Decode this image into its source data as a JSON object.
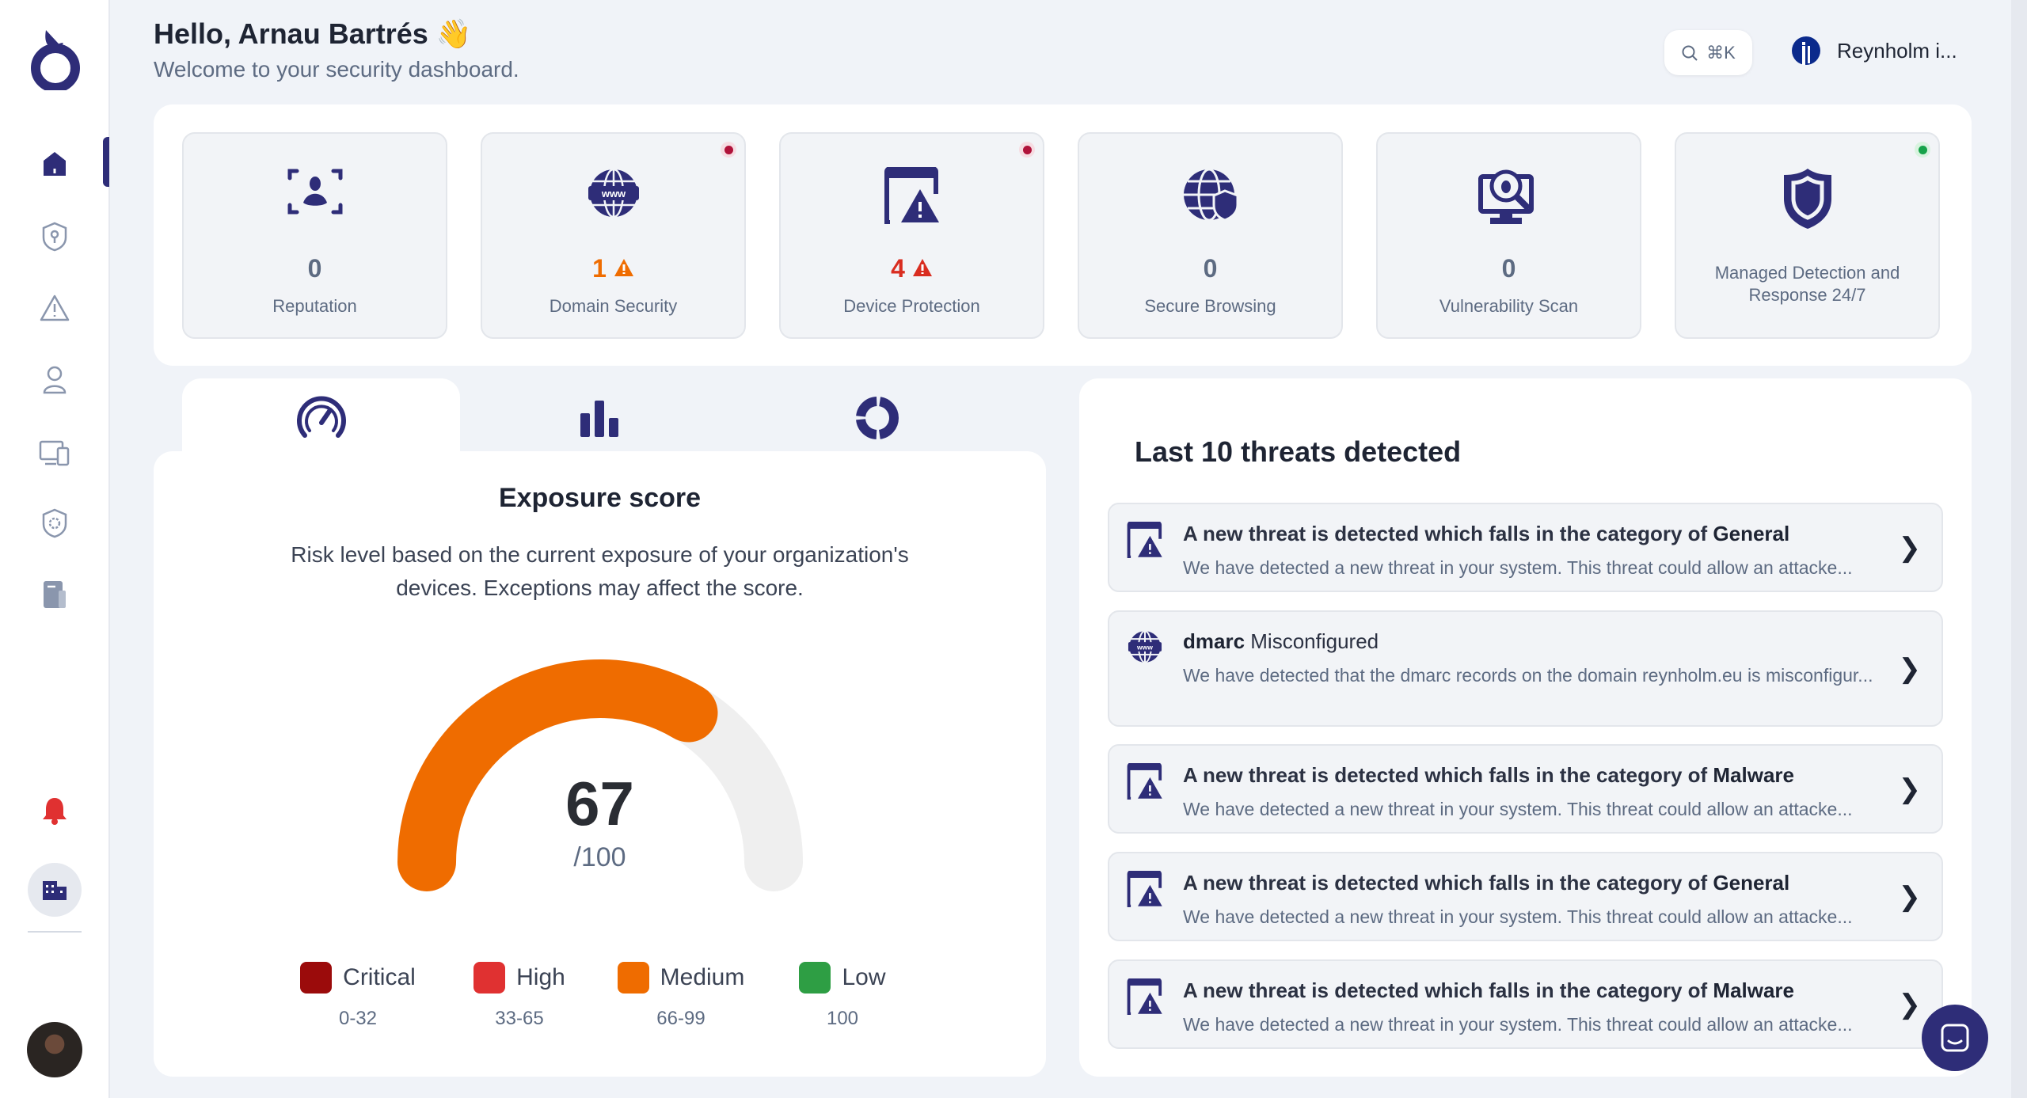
{
  "header": {
    "greeting": "Hello, Arnau Bartrés 👋",
    "subtitle": "Welcome to your security dashboard.",
    "search_shortcut": "⌘K",
    "org_name": "Reynholm i..."
  },
  "sidebar": {
    "items": [
      "home",
      "security",
      "alerts",
      "users",
      "devices",
      "settings",
      "reports"
    ],
    "active": "home"
  },
  "cards": [
    {
      "label": "Reputation",
      "value": "0",
      "icon": "face-scan-icon"
    },
    {
      "label": "Domain Security",
      "value": "1",
      "warning": true,
      "status": "#b0123a",
      "icon": "globe-www-icon"
    },
    {
      "label": "Device Protection",
      "value": "4",
      "warning": true,
      "status": "#b0123a",
      "icon": "device-warning-icon"
    },
    {
      "label": "Secure Browsing",
      "value": "0",
      "icon": "globe-shield-icon"
    },
    {
      "label": "Vulnerability Scan",
      "value": "0",
      "icon": "bug-scan-icon"
    },
    {
      "label": "Managed Detection and Response 24/7",
      "status": "#16a34a",
      "icon": "shield-icon"
    }
  ],
  "exposure": {
    "title": "Exposure score",
    "description": "Risk level based on the current exposure of your organization's devices. Exceptions may affect the score.",
    "score": "67",
    "max": "/100",
    "fraction": 0.67,
    "legend": [
      {
        "label": "Critical",
        "range": "0-32",
        "color": "#9b0b0b"
      },
      {
        "label": "High",
        "range": "33-65",
        "color": "#e03131"
      },
      {
        "label": "Medium",
        "range": "66-99",
        "color": "#ef6c00"
      },
      {
        "label": "Low",
        "range": "100",
        "color": "#2e9e44"
      }
    ]
  },
  "threats": {
    "title": "Last 10 threats detected",
    "items": [
      {
        "prefix": "A new threat is detected which falls in the category of ",
        "bold": "General",
        "desc": "We have detected a new threat in your system. This threat could allow an attacke...",
        "icon": "device-warning-icon"
      },
      {
        "prefix": "",
        "bold": "dmarc",
        "suffix": " Misconfigured",
        "desc": "We have detected that the dmarc records on the domain reynholm.eu is misconfigur...",
        "icon": "globe-www-icon"
      },
      {
        "prefix": "A new threat is detected which falls in the category of ",
        "bold": "Malware",
        "desc": "We have detected a new threat in your system. This threat could allow an attacke...",
        "icon": "device-warning-icon"
      },
      {
        "prefix": "A new threat is detected which falls in the category of ",
        "bold": "General",
        "desc": "We have detected a new threat in your system. This threat could allow an attacke...",
        "icon": "device-warning-icon"
      },
      {
        "prefix": "A new threat is detected which falls in the category of ",
        "bold": "Malware",
        "desc": "We have detected a new threat in your system. This threat could allow an attacke...",
        "icon": "device-warning-icon"
      }
    ]
  }
}
